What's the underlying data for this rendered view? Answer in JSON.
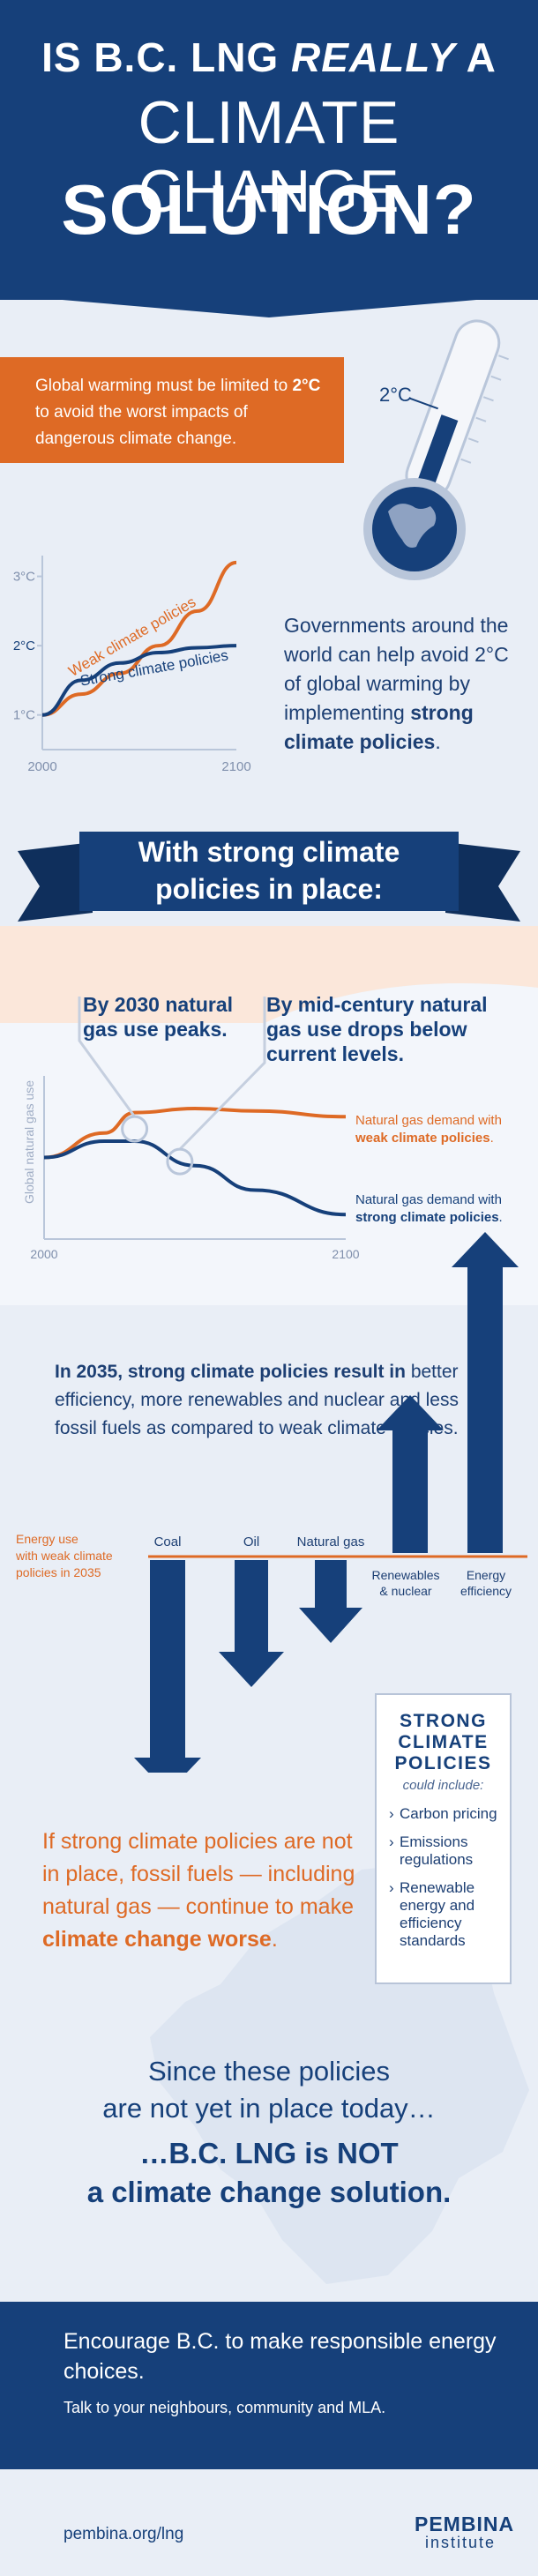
{
  "header": {
    "line1_start": "IS B.C. LNG ",
    "line1_em": "REALLY",
    "line1_end": " A",
    "line2": "CLIMATE CHANGE",
    "line3": "SOLUTION?"
  },
  "warning": {
    "text_pre": "Global warming must be limited to ",
    "limit": "2°C",
    "text_post": " to avoid the worst impacts of dangerous climate change."
  },
  "thermometer": {
    "label": "2°C",
    "scale": [
      "5",
      "4",
      "3",
      "2",
      "1",
      "0"
    ]
  },
  "governments": {
    "text_pre": "Governments around the world can help avoid 2°C of global warming by implementing ",
    "text_bold": "strong climate policies",
    "text_post": "."
  },
  "ribbon": {
    "line1": "With strong climate",
    "line2": "policies in place:"
  },
  "annotations": {
    "peak_l1": "By 2030 natural",
    "peak_l2": "gas use peaks.",
    "drop_l1": "By mid-century natural",
    "drop_l2": "gas use drops below",
    "drop_l3": "current levels."
  },
  "gas_legend": {
    "weak_pre": "Natural gas demand with",
    "weak_bold": "weak climate policies",
    "strong_pre": "Natural gas demand with",
    "strong_bold": "strong climate policies"
  },
  "energy": {
    "para_bold": "In 2035, strong climate policies result in",
    "para_rest": "better efficiency, more renewables and nuclear and less fossil fuels as compared to weak climate policies.",
    "baseline_l1": "Energy use",
    "baseline_l2": "with weak climate",
    "baseline_l3": "policies in 2035",
    "renew_l1": "Renewables",
    "renew_l2": "& nuclear",
    "eff_l1": "Energy",
    "eff_l2": "efficiency"
  },
  "worse": {
    "text_pre": "If strong climate policies are not in place, fossil fuels — including natural gas — continue to make ",
    "text_bold": "climate change worse",
    "text_post": "."
  },
  "policy_box": {
    "title_l1": "STRONG",
    "title_l2": "CLIMATE",
    "title_l3": "POLICIES",
    "subtitle": "could include:",
    "items": [
      "Carbon pricing",
      "Emissions regulations",
      "Renewable energy and efficiency standards"
    ]
  },
  "conclusion": {
    "since_l1": "Since these policies",
    "since_l2": "are not yet in place today…",
    "not_pre": "…B.C. LNG is ",
    "not_bold": "NOT",
    "not_l2": "a climate change solution."
  },
  "footer": {
    "line1": "Encourage B.C. to make responsible energy choices.",
    "line2": "Talk to your neighbours, community and MLA.",
    "url": "pembina.org/lng",
    "logo_main": "PEMBINA",
    "logo_sub": "institute"
  },
  "colors": {
    "navy": "#16407a",
    "orange": "#de6a25",
    "light_bg": "#e9eef6"
  },
  "chart_data": [
    {
      "type": "line",
      "title": "",
      "xlabel": "",
      "ylabel": "",
      "x_ticks": [
        "2000",
        "2100"
      ],
      "y_ticks": [
        "1°C",
        "2°C",
        "3°C"
      ],
      "ylim": [
        1,
        3
      ],
      "series": [
        {
          "name": "Weak climate policies",
          "x": [
            2000,
            2020,
            2040,
            2060,
            2080,
            2100
          ],
          "y": [
            1.0,
            1.3,
            1.6,
            2.0,
            2.5,
            3.2
          ]
        },
        {
          "name": "Strong climate policies",
          "x": [
            2000,
            2020,
            2040,
            2060,
            2080,
            2100
          ],
          "y": [
            1.0,
            1.5,
            1.75,
            1.9,
            1.97,
            2.0
          ]
        }
      ]
    },
    {
      "type": "line",
      "title": "",
      "xlabel": "",
      "ylabel": "Global natural gas use",
      "x_ticks": [
        "2000",
        "2100"
      ],
      "series": [
        {
          "name": "Natural gas demand with weak climate policies",
          "x": [
            2000,
            2020,
            2030,
            2050,
            2070,
            2100
          ],
          "y": [
            1.0,
            1.3,
            1.55,
            1.6,
            1.57,
            1.5
          ]
        },
        {
          "name": "Natural gas demand with strong climate policies",
          "x": [
            2000,
            2020,
            2030,
            2050,
            2070,
            2100
          ],
          "y": [
            1.0,
            1.2,
            1.2,
            0.9,
            0.6,
            0.3
          ]
        }
      ]
    },
    {
      "type": "bar",
      "title": "",
      "categories": [
        "Coal",
        "Oil",
        "Natural gas",
        "Renewables & nuclear",
        "Energy efficiency"
      ],
      "values": [
        -5,
        -2.6,
        -1.6,
        3.3,
        7
      ],
      "baseline_label": "Energy use with weak climate policies in 2035"
    }
  ]
}
